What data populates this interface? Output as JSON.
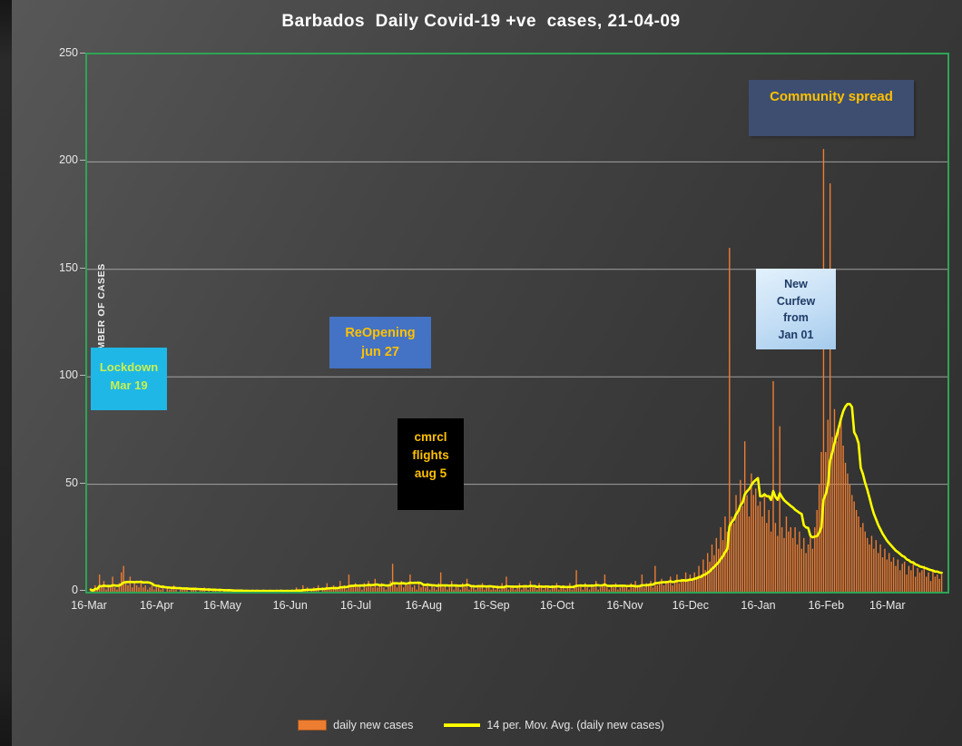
{
  "title": "Barbados  Daily Covid-19 +ve  cases, 21-04-09",
  "y_axis": {
    "title": "NUMBER OF CASES"
  },
  "legend": {
    "bars_label": "daily new cases",
    "line_label": "14 per. Mov. Avg. (daily new cases)"
  },
  "annotations": {
    "lockdown": {
      "line1": "Lockdown",
      "line2": "Mar 19"
    },
    "reopening": {
      "line1": "ReOpening",
      "line2": "jun 27"
    },
    "cmrcl": {
      "line1": "cmrcl",
      "line2": "flights",
      "line3": "aug 5"
    },
    "curfew": {
      "line1": "New",
      "line2": "Curfew",
      "line3": "from",
      "line4": "Jan 01"
    },
    "community": {
      "line1": "Community spread"
    }
  },
  "colors": {
    "background": "#3f3f3f",
    "plot_border": "#2ea455",
    "gridline": "#b9b9b9",
    "title_text": "#ffffff",
    "axis_text": "#e8e8e8",
    "bar": "#ed7d31",
    "line": "#ffff00",
    "lockdown_bg": "#1fb7e6",
    "lockdown_text": "#c9f04e",
    "reopening_bg": "#4472c4",
    "gold_text": "#ffc000",
    "cmrcl_bg": "#000000",
    "curfew_bg": "#c4def5",
    "curfew_text": "#1f3b66",
    "community_bg": "#3d4e70"
  },
  "chart_data": {
    "type": "bar",
    "title": "Barbados  Daily Covid-19 +ve  cases, 21-04-09",
    "xlabel": "",
    "ylabel": "NUMBER OF CASES",
    "ylim": [
      0,
      250
    ],
    "grid": true,
    "legend_position": "bottom",
    "y_ticks": [
      0,
      50,
      100,
      150,
      200,
      250
    ],
    "x_tick_labels": [
      "16-Mar",
      "16-Apr",
      "16-May",
      "16-Jun",
      "16-Jul",
      "16-Aug",
      "16-Sep",
      "16-Oct",
      "16-Nov",
      "16-Dec",
      "16-Jan",
      "16-Feb",
      "16-Mar"
    ],
    "x_tick_day_index": [
      0,
      31,
      61,
      92,
      122,
      153,
      184,
      214,
      245,
      275,
      306,
      337,
      365
    ],
    "x_range_note": "daily values from 16-Mar-2020 to 09-Apr-2021, estimated from pixels",
    "peak_values_note": "notable spikes: ~160 around 02-Jan-2021, ~98 late Jan, ~206 and ~190 mid-Feb-2021",
    "series": [
      {
        "name": "daily new cases",
        "type": "bar",
        "color": "#ed7d31",
        "values": [
          1,
          0,
          3,
          1,
          8,
          2,
          5,
          1,
          3,
          2,
          7,
          2,
          1,
          4,
          9,
          12,
          5,
          3,
          7,
          2,
          4,
          3,
          2,
          4,
          2,
          3,
          1,
          2,
          3,
          1,
          2,
          2,
          1,
          3,
          0,
          2,
          1,
          2,
          3,
          1,
          0,
          2,
          1,
          1,
          2,
          0,
          1,
          2,
          1,
          0,
          1,
          1,
          2,
          0,
          1,
          0,
          1,
          1,
          0,
          1,
          0,
          1,
          0,
          1,
          0,
          0,
          1,
          0,
          1,
          0,
          0,
          1,
          0,
          0,
          1,
          0,
          1,
          0,
          0,
          1,
          0,
          0,
          1,
          0,
          0,
          1,
          0,
          1,
          0,
          0,
          1,
          0,
          1,
          0,
          2,
          1,
          0,
          3,
          1,
          2,
          0,
          1,
          2,
          1,
          3,
          0,
          2,
          1,
          4,
          2,
          1,
          3,
          2,
          1,
          5,
          2,
          3,
          1,
          8,
          3,
          2,
          4,
          2,
          3,
          1,
          4,
          2,
          5,
          3,
          2,
          6,
          2,
          3,
          4,
          2,
          1,
          3,
          5,
          13,
          4,
          2,
          3,
          5,
          2,
          4,
          3,
          8,
          2,
          3,
          1,
          4,
          2,
          3,
          2,
          4,
          1,
          3,
          2,
          1,
          4,
          9,
          2,
          3,
          1,
          2,
          5,
          1,
          3,
          2,
          1,
          4,
          2,
          6,
          1,
          3,
          2,
          1,
          3,
          2,
          4,
          1,
          2,
          3,
          1,
          2,
          1,
          3,
          1,
          4,
          2,
          7,
          1,
          2,
          3,
          1,
          2,
          4,
          1,
          3,
          2,
          1,
          5,
          2,
          3,
          1,
          4,
          2,
          1,
          3,
          2,
          1,
          3,
          2,
          4,
          1,
          2,
          3,
          1,
          2,
          4,
          1,
          3,
          10,
          2,
          3,
          1,
          4,
          2,
          1,
          3,
          2,
          5,
          1,
          2,
          3,
          8,
          2,
          1,
          3,
          2,
          4,
          1,
          2,
          3,
          2,
          3,
          1,
          4,
          2,
          5,
          2,
          3,
          8,
          2,
          4,
          3,
          5,
          2,
          12,
          3,
          4,
          6,
          3,
          5,
          4,
          7,
          3,
          5,
          8,
          4,
          6,
          5,
          9,
          6,
          8,
          6,
          9,
          7,
          12,
          8,
          15,
          10,
          18,
          14,
          22,
          17,
          25,
          20,
          30,
          24,
          35,
          28,
          160,
          35,
          32,
          45,
          38,
          52,
          40,
          70,
          45,
          35,
          55,
          45,
          48,
          40,
          42,
          35,
          45,
          32,
          38,
          28,
          98,
          32,
          26,
          77,
          30,
          25,
          35,
          28,
          30,
          25,
          30,
          22,
          28,
          20,
          25,
          18,
          22,
          26,
          20,
          30,
          38,
          50,
          65,
          206,
          65,
          80,
          190,
          72,
          85,
          70,
          75,
          82,
          68,
          60,
          55,
          50,
          45,
          42,
          38,
          35,
          30,
          32,
          28,
          25,
          22,
          26,
          20,
          24,
          18,
          22,
          16,
          20,
          15,
          18,
          14,
          16,
          12,
          15,
          10,
          13,
          14,
          8,
          12,
          10,
          14,
          7,
          11,
          9,
          10,
          12,
          7,
          9,
          5,
          10,
          7,
          8,
          6,
          8
        ]
      },
      {
        "name": "14 per. Mov. Avg. (daily new cases)",
        "type": "line",
        "color": "#ffff00",
        "derived": "14-period trailing moving average of daily new cases"
      }
    ]
  }
}
